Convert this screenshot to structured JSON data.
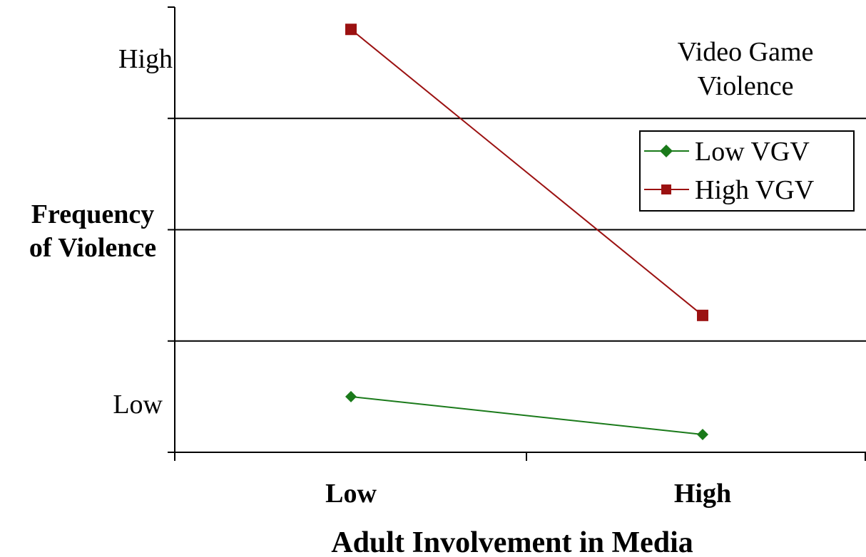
{
  "chart_data": {
    "type": "line",
    "title": "",
    "xlabel": "Adult Involvement in Media",
    "ylabel": "Frequency of Violence",
    "ylabel_lines": [
      "Frequency",
      "of Violence"
    ],
    "categories": [
      "Low",
      "High"
    ],
    "y_tick_labels": [
      {
        "text": "High",
        "value": 3.5
      },
      {
        "text": "Low",
        "value": 0.5
      }
    ],
    "ylim": [
      0,
      4
    ],
    "y_gridlines": [
      1,
      2,
      3
    ],
    "grid": true,
    "legend_title_lines": [
      "Video Game",
      "Violence"
    ],
    "legend_position": "top-right",
    "series": [
      {
        "name": "Low VGV",
        "values": [
          0.5,
          0.16
        ],
        "color": "#1a7a1a",
        "marker": "diamond"
      },
      {
        "name": "High VGV",
        "values": [
          3.8,
          1.23
        ],
        "color": "#9b1111",
        "marker": "square"
      }
    ]
  }
}
